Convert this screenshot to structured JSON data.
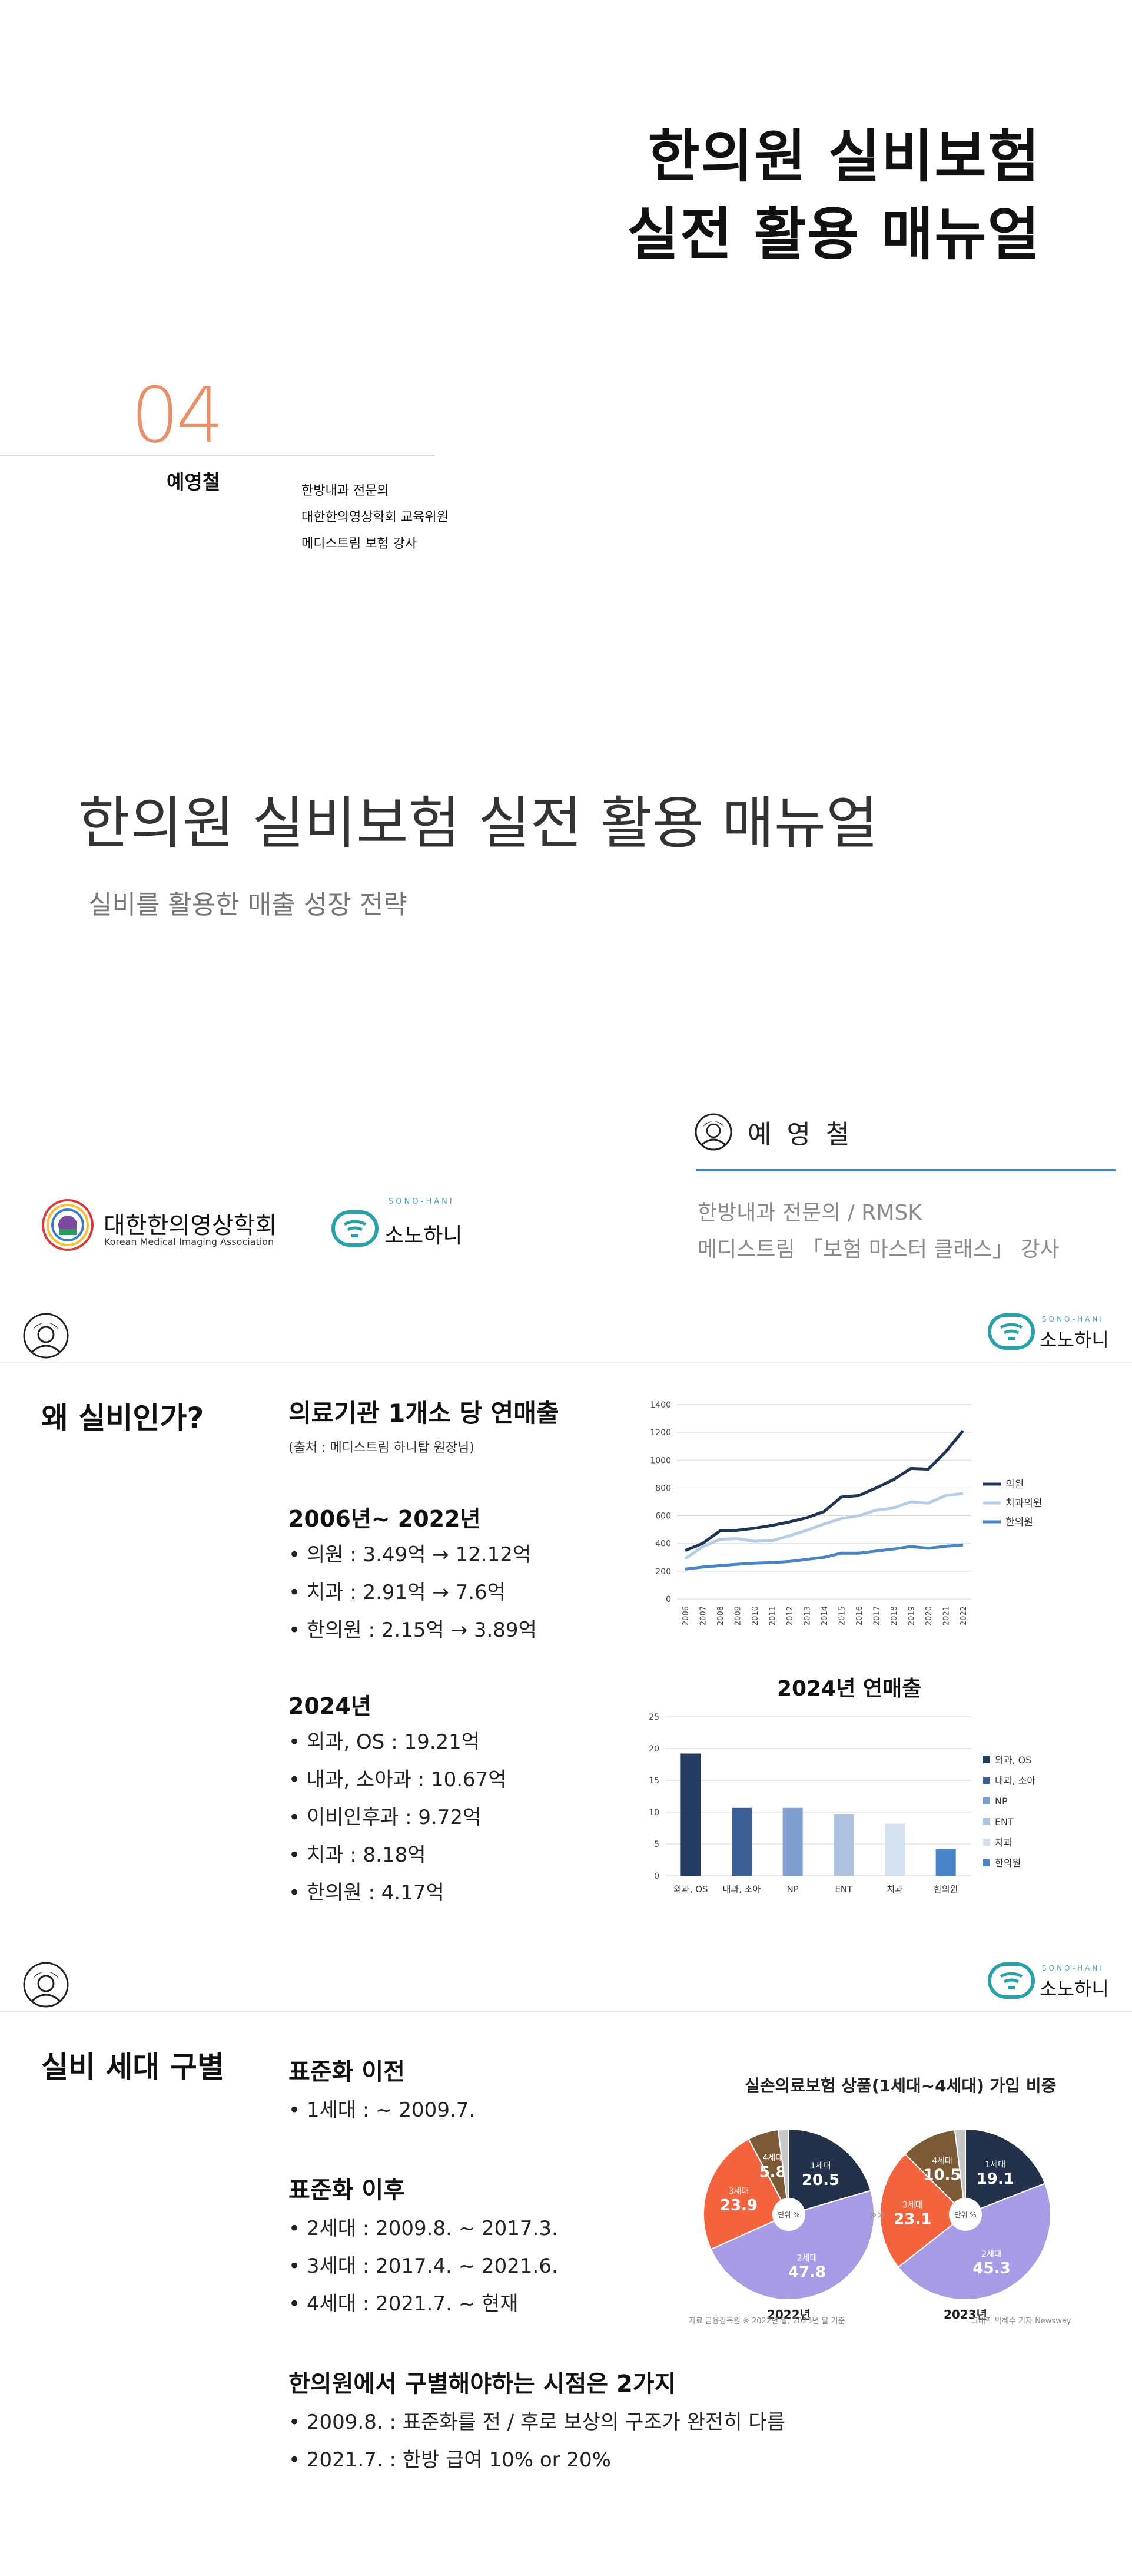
{
  "cover": {
    "title_line1": "한의원 실비보험",
    "title_line2": "실전 활용 매뉴얼",
    "chapter_number": "04",
    "speaker": "예영철",
    "credentials": [
      "한방내과 전문의",
      "대한한의영상학회 교육위원",
      "메디스트림 보험 강사"
    ]
  },
  "intro": {
    "title": "한의원 실비보험 실전 활용 매뉴얼",
    "subtitle": "실비를 활용한 매출 성장 전략",
    "speaker_name": "예 영 철",
    "speaker_credentials": [
      "한방내과 전문의 / RMSK",
      "메디스트림 「보험 마스터 클래스」 강사"
    ],
    "logo1_text": "대한한의영상학회",
    "logo1_sub": "Korean Medical Imaging Association",
    "logo2_text": "소노하니",
    "logo2_top": "SONO-HANI"
  },
  "slide1": {
    "section_title": "왜 실비인가?",
    "heading": "의료기관 1개소 당 연매출",
    "source": "(출처 : 메디스트림 하니탑 원장님)",
    "period1_heading": "2006년~ 2022년",
    "period1_items": [
      "• 의원 : 3.49억 → 12.12억",
      "• 치과 : 2.91억 →  7.6억",
      "• 한의원 : 2.15억 → 3.89억"
    ],
    "period2_heading": "2024년",
    "period2_items": [
      "• 외과, OS : 19.21억",
      "• 내과, 소아과 : 10.67억",
      "• 이비인후과 : 9.72억",
      "• 치과 : 8.18억",
      "• 한의원 : 4.17억"
    ],
    "brand_text": "소노하니",
    "brand_top": "SONO-HANI"
  },
  "slide2": {
    "section_title": "실비 세대 구별",
    "heading_pre": "표준화 이전",
    "pre_items": [
      "• 1세대 : ~ 2009.7."
    ],
    "heading_post": "표준화 이후",
    "post_items": [
      "• 2세대 : 2009.8. ~ 2017.3.",
      "• 3세대 : 2017.4. ~ 2021.6.",
      "• 4세대 : 2021.7. ~ 현재"
    ],
    "heading_key": "한의원에서 구별해야하는 시점은 2가지",
    "key_items": [
      "• 2009.8. : 표준화를 전 / 후로 보상의 구조가 완전히 다름",
      "• 2021.7. :  한방 급여 10% or 20%"
    ],
    "brand_text": "소노하니",
    "brand_top": "SONO-HANI"
  },
  "chart_data": [
    {
      "type": "line",
      "title": "",
      "x": [
        "2006",
        "2007",
        "2008",
        "2009",
        "2010",
        "2011",
        "2012",
        "2013",
        "2014",
        "2015",
        "2016",
        "2017",
        "2018",
        "2019",
        "2020",
        "2021",
        "2022"
      ],
      "ylim": [
        0,
        1400
      ],
      "yticks": [
        0,
        200,
        400,
        600,
        800,
        1000,
        1200,
        1400
      ],
      "grid": true,
      "legend": "right",
      "series": [
        {
          "name": "의원",
          "color": "#1f3556",
          "values": [
            349,
            400,
            490,
            495,
            510,
            530,
            555,
            585,
            630,
            735,
            745,
            800,
            860,
            940,
            935,
            1060,
            1212
          ]
        },
        {
          "name": "치과의원",
          "color": "#b7cde6",
          "values": [
            291,
            375,
            430,
            435,
            415,
            420,
            455,
            495,
            540,
            580,
            600,
            640,
            655,
            700,
            690,
            745,
            760
          ]
        },
        {
          "name": "한의원",
          "color": "#4a84c8",
          "values": [
            215,
            230,
            240,
            250,
            258,
            262,
            270,
            285,
            300,
            330,
            330,
            345,
            360,
            378,
            365,
            380,
            389
          ]
        }
      ]
    },
    {
      "type": "bar",
      "title": "2024년 연매출",
      "categories": [
        "외과, OS",
        "내과, 소아",
        "NP",
        "ENT",
        "치과",
        "한의원"
      ],
      "ylim": [
        0,
        25
      ],
      "yticks": [
        0,
        5,
        10,
        15,
        20,
        25
      ],
      "grid": true,
      "legend": "right",
      "series": [
        {
          "name": "외과, OS",
          "color": "#233a61",
          "value": 19.21
        },
        {
          "name": "내과, 소아",
          "color": "#3d5f96",
          "value": 10.67
        },
        {
          "name": "NP",
          "color": "#7f9ece",
          "value": 10.67
        },
        {
          "name": "ENT",
          "color": "#aec1dd",
          "value": 9.72
        },
        {
          "name": "치과",
          "color": "#d6e1ef",
          "value": 8.18
        },
        {
          "name": "한의원",
          "color": "#4a84c8",
          "value": 4.17
        }
      ]
    },
    {
      "type": "pie",
      "title": "실손의료보험 상품(1세대~4세대) 가입 비중",
      "center_label": "단위 %",
      "charts": [
        {
          "year": "2022년",
          "slices": [
            {
              "label": "1세대",
              "value": 20.5,
              "color": "#23324a"
            },
            {
              "label": "2세대",
              "value": 47.8,
              "color": "#a99ce6"
            },
            {
              "label": "3세대",
              "value": 23.9,
              "color": "#f2633e"
            },
            {
              "label": "4세대",
              "value": 5.8,
              "color": "#7c5a37"
            },
            {
              "label": "",
              "value": 2.0,
              "color": "#c8c8c8"
            }
          ]
        },
        {
          "year": "2023년",
          "slices": [
            {
              "label": "1세대",
              "value": 19.1,
              "color": "#23324a"
            },
            {
              "label": "2세대",
              "value": 45.3,
              "color": "#a99ce6"
            },
            {
              "label": "3세대",
              "value": 23.1,
              "color": "#f2633e"
            },
            {
              "label": "4세대",
              "value": 10.5,
              "color": "#7c5a37"
            },
            {
              "label": "",
              "value": 2.0,
              "color": "#c8c8c8"
            }
          ]
        }
      ],
      "source_note": "자료 금융감독원 ※ 2022년 말, 2023년 말 기준",
      "credit": "그래픽 박혜수 기자 Newsway"
    }
  ]
}
